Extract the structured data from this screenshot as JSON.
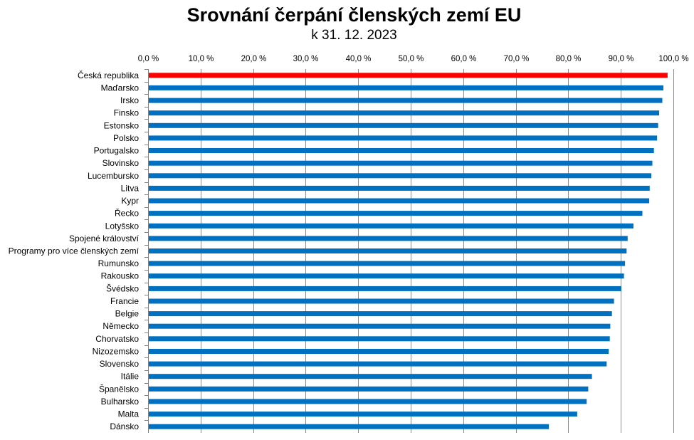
{
  "chart_data": {
    "type": "bar",
    "orientation": "horizontal",
    "title": "Srovnání čerpání členských zemí EU",
    "subtitle": "k 31. 12. 2023",
    "xlabel": "",
    "ylabel": "",
    "xlim": [
      0,
      100
    ],
    "x_ticks": [
      "0,0 %",
      "10,0 %",
      "20,0 %",
      "30,0 %",
      "40,0 %",
      "50,0 %",
      "60,0 %",
      "70,0 %",
      "80,0 %",
      "90,0 %",
      "100,0 %"
    ],
    "x_axis_position": "top",
    "grid": "vertical",
    "legend": "none",
    "colors": {
      "default": "#0070C0",
      "highlight": "#FF0000"
    },
    "highlight_category": "Česká republika",
    "categories": [
      "Česká republika",
      "Maďarsko",
      "Irsko",
      "Finsko",
      "Estonsko",
      "Polsko",
      "Portugalsko",
      "Slovinsko",
      "Lucembursko",
      "Litva",
      "Kypr",
      "Řecko",
      "Lotyšsko",
      "Spojené království",
      "Programy pro více členských zemí",
      "Rumunsko",
      "Rakousko",
      "Švédsko",
      "Francie",
      "Belgie",
      "Německo",
      "Chorvatsko",
      "Nizozemsko",
      "Slovensko",
      "Itálie",
      "Španělsko",
      "Bulharsko",
      "Malta",
      "Dánsko"
    ],
    "values": [
      98.9,
      98.1,
      97.9,
      97.3,
      97.1,
      96.9,
      96.3,
      96.0,
      95.8,
      95.5,
      95.4,
      94.1,
      92.4,
      91.3,
      91.1,
      90.8,
      90.6,
      90.1,
      88.7,
      88.3,
      88.0,
      87.9,
      87.7,
      87.3,
      84.5,
      83.8,
      83.5,
      81.7,
      76.3
    ]
  }
}
